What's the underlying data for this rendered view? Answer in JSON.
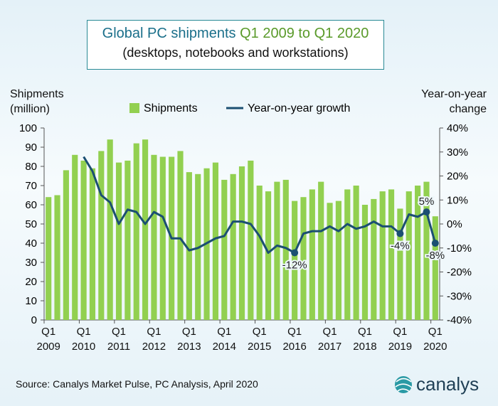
{
  "chart_data": {
    "type": "bar-line",
    "title": "Global PC shipments",
    "title_period": "Q1 2009 to Q1 2020",
    "subtitle": "(desktops, notebooks and workstations)",
    "ylabel": "Shipments\n(million)",
    "y2label": "Year-on-year\nchange",
    "source": "Source: Canalys Market Pulse, PC Analysis, April 2020",
    "brand": "canalys",
    "categories": [
      "Q1\n2009",
      null,
      null,
      null,
      "Q1\n2010",
      null,
      null,
      null,
      "Q1\n2011",
      null,
      null,
      null,
      "Q1\n2012",
      null,
      null,
      null,
      "Q1\n2013",
      null,
      null,
      null,
      "Q1\n2014",
      null,
      null,
      null,
      "Q1\n2015",
      null,
      null,
      null,
      "Q1\n2016",
      null,
      null,
      null,
      "Q1\n2017",
      null,
      null,
      null,
      "Q1\n2018",
      null,
      null,
      null,
      "Q1\n2019",
      null,
      null,
      null,
      "Q1\n2020"
    ],
    "series": [
      {
        "name": "Shipments",
        "color": "#92d050",
        "type": "bar",
        "values": [
          64,
          65,
          78,
          86,
          83,
          79,
          88,
          94,
          82,
          83,
          92,
          94,
          86,
          85,
          85,
          88,
          77,
          76,
          79,
          82,
          73,
          76,
          80,
          83,
          70,
          67,
          72,
          73,
          62,
          64,
          68,
          72,
          61,
          62,
          68,
          70,
          60,
          63,
          67,
          68,
          58,
          67,
          70,
          72,
          54
        ]
      },
      {
        "name": "Year-on-year growth",
        "color": "#1b4f72",
        "type": "line",
        "axis": "y2",
        "values": [
          null,
          null,
          null,
          null,
          28,
          22,
          12,
          9,
          0,
          6,
          5,
          0,
          5,
          3,
          -6,
          -6,
          -11,
          -10,
          -8,
          -6,
          -5,
          1,
          1,
          0,
          -5,
          -12,
          -9,
          -10,
          -12,
          -4,
          -3,
          -3,
          -1,
          -3,
          0,
          -2,
          -1,
          1,
          -1,
          -1,
          -4,
          4,
          3,
          5,
          -8
        ],
        "value_labels": [
          null,
          null,
          null,
          null,
          null,
          null,
          null,
          null,
          null,
          null,
          null,
          null,
          null,
          null,
          null,
          null,
          null,
          null,
          null,
          null,
          null,
          null,
          null,
          null,
          null,
          null,
          null,
          null,
          "-12%",
          null,
          null,
          null,
          null,
          null,
          null,
          null,
          null,
          null,
          null,
          null,
          "-4%",
          null,
          null,
          "5%",
          "-8%"
        ]
      }
    ],
    "ylim": [
      0,
      100
    ],
    "yticks": [
      0,
      10,
      20,
      30,
      40,
      50,
      60,
      70,
      80,
      90,
      100
    ],
    "y2lim": [
      -40,
      40
    ],
    "y2ticks": [
      {
        "value": -40,
        "label": "-40%"
      },
      {
        "value": -30,
        "label": "-30%"
      },
      {
        "value": -20,
        "label": "-20%"
      },
      {
        "value": -10,
        "label": "-10%"
      },
      {
        "value": 0,
        "label": "0%"
      },
      {
        "value": 10,
        "label": "10%"
      },
      {
        "value": 20,
        "label": "20%"
      },
      {
        "value": 30,
        "label": "30%"
      },
      {
        "value": 40,
        "label": "40%"
      }
    ],
    "legend": "top"
  }
}
